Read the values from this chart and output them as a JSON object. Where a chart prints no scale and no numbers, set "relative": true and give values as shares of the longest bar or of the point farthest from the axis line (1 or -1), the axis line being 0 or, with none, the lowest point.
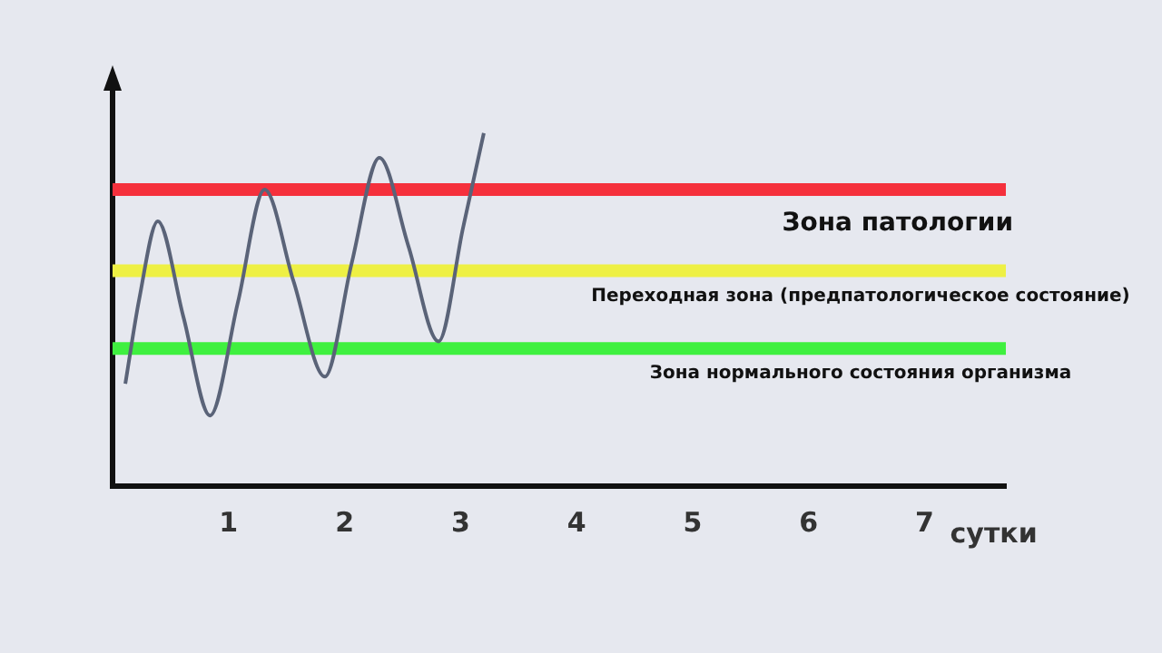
{
  "chart_data": {
    "type": "line",
    "relative": true,
    "xlabel": "сутки",
    "xlim": [
      0,
      7.7
    ],
    "xticks": [
      1,
      2,
      3,
      4,
      5,
      6,
      7
    ],
    "series": [
      {
        "color": "#5a6378",
        "x": [
          0.11,
          0.23,
          0.39,
          0.61,
          0.84,
          1.08,
          1.31,
          1.56,
          1.83,
          2.06,
          2.3,
          2.55,
          2.81,
          3.02,
          3.2
        ],
        "values": [
          0.29,
          0.53,
          0.75,
          0.48,
          0.2,
          0.52,
          0.84,
          0.58,
          0.31,
          0.63,
          0.93,
          0.68,
          0.41,
          0.73,
          1.0
        ]
      }
    ],
    "ref_lines": [
      {
        "axis": "y",
        "value": 0.84,
        "label": "Зона патологии",
        "color": "#f5303c"
      },
      {
        "axis": "y",
        "value": 0.61,
        "label": "Переходная зона (предпатологическое состояние)",
        "color": "#eef044"
      },
      {
        "axis": "y",
        "value": 0.39,
        "label": "Зона нормального состояния организма",
        "color": "#3ff03f"
      }
    ],
    "grid": false,
    "legend": false,
    "marker": "none",
    "line_style": "solid"
  }
}
